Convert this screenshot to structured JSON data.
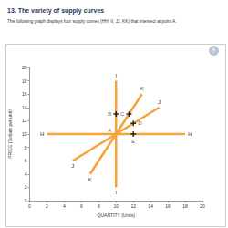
{
  "chart_data": {
    "type": "line",
    "title": "13. The variety of supply curves",
    "subtitle": "The following graph displays four supply curves (HH, II, JJ, KK) that intersect at point A.",
    "help_icon": "?",
    "x_label": "QUANTITY (Units)",
    "y_label": "PRICE (Dollars per unit)",
    "xlim": [
      0,
      20
    ],
    "xticks": [
      0,
      2,
      4,
      6,
      8,
      10,
      12,
      14,
      16,
      18,
      20
    ],
    "ylim": [
      0,
      20
    ],
    "yticks": [
      0,
      2,
      4,
      6,
      8,
      10,
      12,
      14,
      16,
      18,
      20
    ],
    "grid": false,
    "series": [
      {
        "type": "line",
        "color": "#f5a33a",
        "x": [
          2,
          18
        ],
        "values": [
          10,
          10
        ],
        "point_labels": [
          "H",
          "H"
        ]
      },
      {
        "type": "line",
        "color": "#f5a33a",
        "x": [
          10,
          10
        ],
        "values": [
          2,
          18
        ],
        "point_labels": [
          "I",
          "I"
        ]
      },
      {
        "type": "line",
        "color": "#f5a33a",
        "x": [
          5,
          15
        ],
        "values": [
          6,
          14
        ],
        "point_labels": [
          "J",
          "J"
        ]
      },
      {
        "type": "line",
        "color": "#f5a33a",
        "x": [
          7,
          13
        ],
        "values": [
          4,
          16
        ],
        "point_labels": [
          "K",
          "K"
        ]
      },
      {
        "type": "scatter",
        "marker": "cross",
        "color": "#000000",
        "x": [
          10,
          11.5,
          12,
          12
        ],
        "values": [
          13,
          13,
          11.6,
          10
        ],
        "point_labels": [
          "B",
          "C",
          "D",
          "E"
        ]
      }
    ],
    "annotations": [
      {
        "text": "A",
        "x": 10,
        "y": 10
      }
    ]
  }
}
